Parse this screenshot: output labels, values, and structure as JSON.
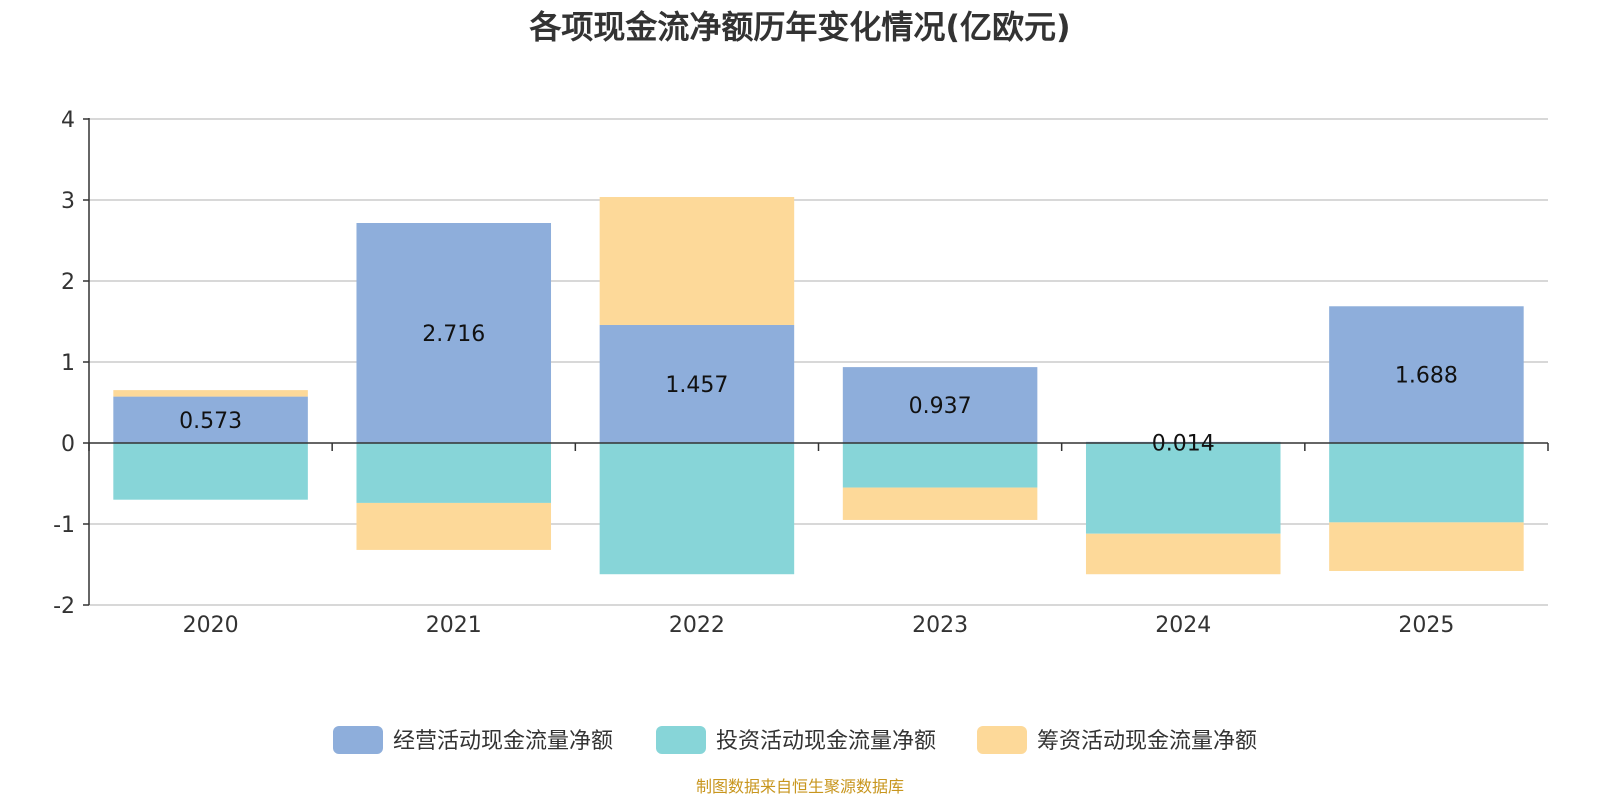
{
  "chart_data": {
    "type": "bar",
    "stacked": true,
    "title": "各项现金流净额历年变化情况(亿欧元)",
    "xlabel": "",
    "ylabel": "",
    "categories": [
      "2020",
      "2021",
      "2022",
      "2023",
      "2024",
      "2025"
    ],
    "ylim": [
      -2,
      4
    ],
    "yticks": [
      "-2",
      "-1",
      "0",
      "1",
      "2",
      "3",
      "4"
    ],
    "grid": true,
    "legend_position": "bottom",
    "series": [
      {
        "name": "经营活动现金流量净额",
        "color": "#8eaedb",
        "values": [
          0.573,
          2.716,
          1.457,
          0.937,
          0.014,
          1.688
        ],
        "labels": [
          "0.573",
          "2.716",
          "1.457",
          "0.937",
          "0.014",
          "1.688"
        ]
      },
      {
        "name": "投资活动现金流量净额",
        "color": "#87d5d8",
        "values": [
          -0.7,
          -0.74,
          -1.62,
          -0.55,
          -1.12,
          -0.98
        ]
      },
      {
        "name": "筹资活动现金流量净额",
        "color": "#fdd999",
        "values": [
          0.08,
          -0.58,
          1.58,
          -0.4,
          -0.5,
          -0.6
        ]
      }
    ],
    "source_note": "制图数据来自恒生聚源数据库"
  }
}
